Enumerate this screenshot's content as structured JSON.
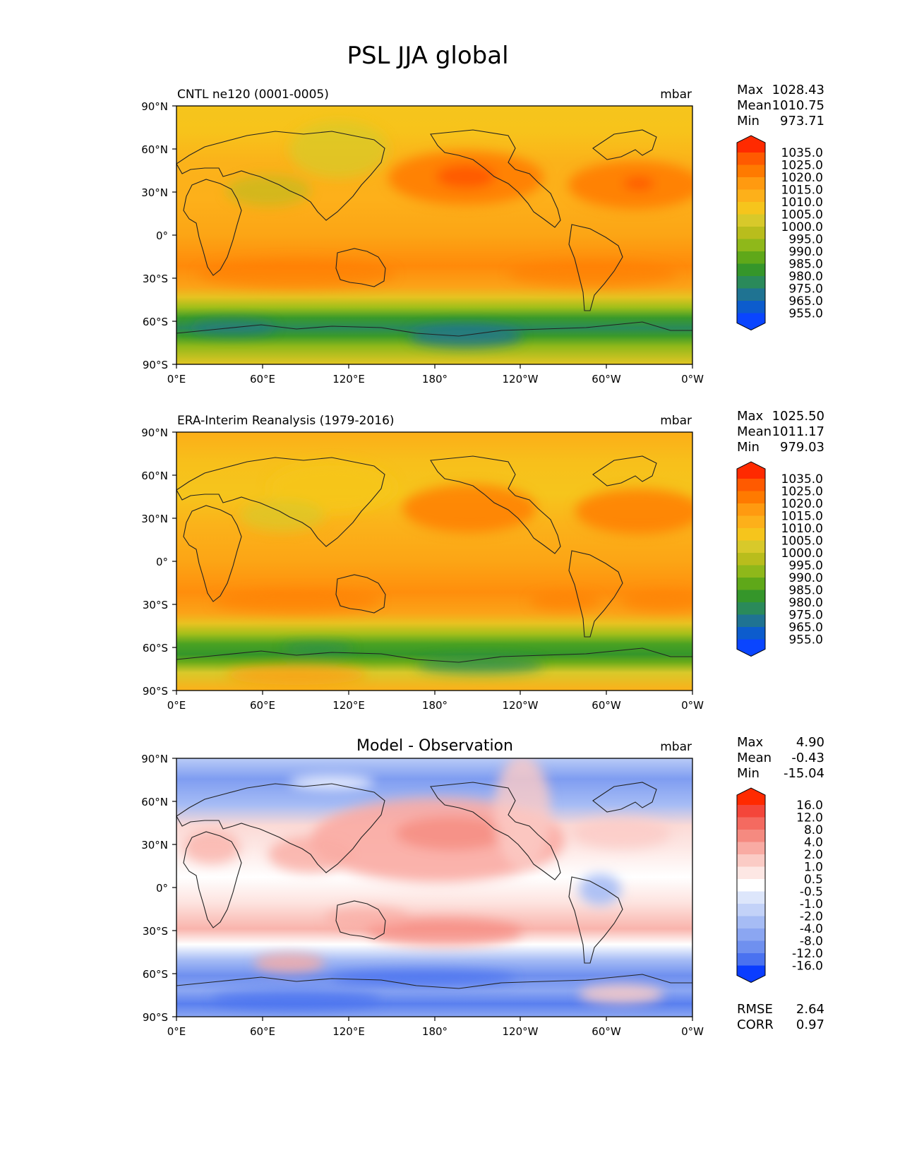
{
  "figure": {
    "title": "PSL JJA global",
    "panels": [
      {
        "title": "CNTL ne120 (0001-0005)",
        "units": "mbar",
        "stats": [
          {
            "label": "Max",
            "value": "1028.43"
          },
          {
            "label": "Mean",
            "value": "1010.75"
          },
          {
            "label": "Min",
            "value": "973.71"
          }
        ],
        "colorbar": {
          "levels": [
            "1035.0",
            "1025.0",
            "1020.0",
            "1015.0",
            "1010.0",
            "1005.0",
            "1000.0",
            "995.0",
            "990.0",
            "985.0",
            "980.0",
            "975.0",
            "965.0",
            "955.0"
          ],
          "colors": [
            "#ff2a00",
            "#ff5a00",
            "#ff7a00",
            "#ff9a10",
            "#fdb01a",
            "#f6c51c",
            "#d8c92a",
            "#b9bd1c",
            "#8fb81a",
            "#5fa819",
            "#35962a",
            "#2a8a5a",
            "#1f7392",
            "#0c5ccd",
            "#0a45ff"
          ]
        }
      },
      {
        "title": "ERA-Interim Reanalysis (1979-2016)",
        "units": "mbar",
        "stats": [
          {
            "label": "Max",
            "value": "1025.50"
          },
          {
            "label": "Mean",
            "value": "1011.17"
          },
          {
            "label": "Min",
            "value": "979.03"
          }
        ],
        "colorbar": {
          "levels": [
            "1035.0",
            "1025.0",
            "1020.0",
            "1015.0",
            "1010.0",
            "1005.0",
            "1000.0",
            "995.0",
            "990.0",
            "985.0",
            "980.0",
            "975.0",
            "965.0",
            "955.0"
          ],
          "colors": [
            "#ff2a00",
            "#ff5a00",
            "#ff7a00",
            "#ff9a10",
            "#fdb01a",
            "#f6c51c",
            "#d8c92a",
            "#b9bd1c",
            "#8fb81a",
            "#5fa819",
            "#35962a",
            "#2a8a5a",
            "#1f7392",
            "#0c5ccd",
            "#0a45ff"
          ]
        }
      },
      {
        "title": "Model - Observation",
        "units": "mbar",
        "stats": [
          {
            "label": "Max",
            "value": "4.90"
          },
          {
            "label": "Mean",
            "value": "-0.43"
          },
          {
            "label": "Min",
            "value": "-15.04"
          }
        ],
        "extra_stats": [
          {
            "label": "RMSE",
            "value": "2.64"
          },
          {
            "label": "CORR",
            "value": "0.97"
          }
        ],
        "colorbar": {
          "levels": [
            "16.0",
            "12.0",
            "8.0",
            "4.0",
            "2.0",
            "1.0",
            "0.5",
            "-0.5",
            "-1.0",
            "-2.0",
            "-4.0",
            "-8.0",
            "-12.0",
            "-16.0"
          ],
          "colors": [
            "#ff2a00",
            "#f4463a",
            "#f46a60",
            "#f58a80",
            "#f9aba3",
            "#fbcbc5",
            "#fde7e4",
            "#ffffff",
            "#dde6fb",
            "#c3d2f8",
            "#a6bcf5",
            "#8ba6f2",
            "#6f90ef",
            "#4a72f0",
            "#0a3dff"
          ]
        }
      }
    ],
    "axes": {
      "x_ticks": [
        "0°E",
        "60°E",
        "120°E",
        "180°",
        "120°W",
        "60°W",
        "0°W"
      ],
      "y_ticks": [
        "90°N",
        "60°N",
        "30°N",
        "0°",
        "30°S",
        "60°S",
        "90°S"
      ]
    }
  },
  "chart_data": [
    {
      "type": "heatmap",
      "title": "CNTL ne120 (0001-0005)",
      "variable": "PSL",
      "season": "JJA",
      "units": "mbar",
      "xlim": [
        0,
        360
      ],
      "ylim": [
        -90,
        90
      ],
      "max": 1028.43,
      "mean": 1010.75,
      "min": 973.71,
      "contour_levels": [
        955,
        965,
        975,
        980,
        985,
        990,
        995,
        1000,
        1005,
        1010,
        1015,
        1020,
        1025,
        1035
      ]
    },
    {
      "type": "heatmap",
      "title": "ERA-Interim Reanalysis (1979-2016)",
      "variable": "PSL",
      "season": "JJA",
      "units": "mbar",
      "xlim": [
        0,
        360
      ],
      "ylim": [
        -90,
        90
      ],
      "max": 1025.5,
      "mean": 1011.17,
      "min": 979.03,
      "contour_levels": [
        955,
        965,
        975,
        980,
        985,
        990,
        995,
        1000,
        1005,
        1010,
        1015,
        1020,
        1025,
        1035
      ]
    },
    {
      "type": "heatmap",
      "title": "Model - Observation",
      "units": "mbar",
      "xlim": [
        0,
        360
      ],
      "ylim": [
        -90,
        90
      ],
      "max": 4.9,
      "mean": -0.43,
      "min": -15.04,
      "rmse": 2.64,
      "corr": 0.97,
      "contour_levels": [
        -16,
        -12,
        -8,
        -4,
        -2,
        -1,
        -0.5,
        0.5,
        1,
        2,
        4,
        8,
        12,
        16
      ]
    }
  ]
}
